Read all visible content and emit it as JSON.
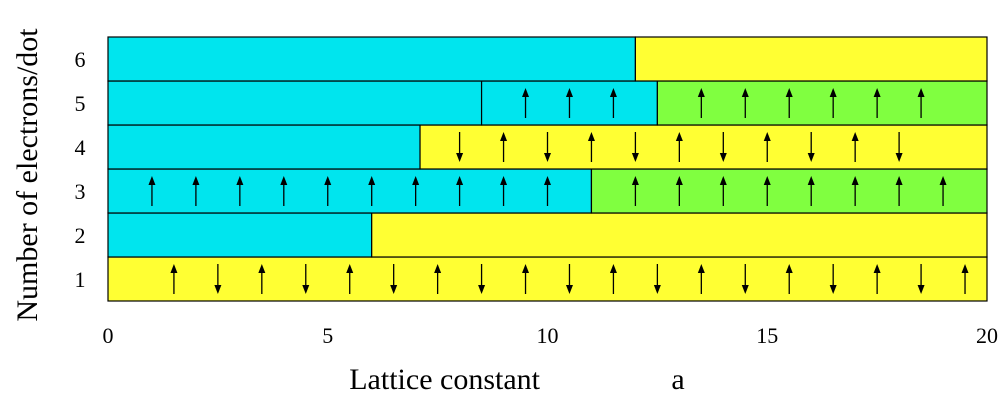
{
  "chart_data": {
    "type": "bar",
    "orientation": "horizontal-segmented",
    "xlabel": "Lattice constant",
    "xlabel_symbol": "a",
    "ylabel": "Number of electrons/dot",
    "xlim": [
      0,
      20
    ],
    "x_ticks": [
      "0",
      "5",
      "10",
      "15",
      "20"
    ],
    "x_tick_values": [
      0,
      5,
      10,
      15,
      20
    ],
    "y_ticks": [
      "1",
      "2",
      "3",
      "4",
      "5",
      "6"
    ],
    "grid": false,
    "colors": {
      "cyan": "#00e5ee",
      "yellow": "#ffff33",
      "green": "#80ff40",
      "edge": "#000000",
      "arrow": "#000000"
    },
    "rows": [
      {
        "n": 1,
        "segments": [
          {
            "from": 0,
            "to": 20,
            "color": "yellow"
          }
        ],
        "arrows": {
          "start": 1.5,
          "step": 1,
          "count": 19,
          "pattern": "alternate-up-down"
        }
      },
      {
        "n": 2,
        "segments": [
          {
            "from": 0,
            "to": 6,
            "color": "cyan"
          },
          {
            "from": 6,
            "to": 20,
            "color": "yellow"
          }
        ],
        "arrows": null
      },
      {
        "n": 3,
        "segments": [
          {
            "from": 0,
            "to": 11,
            "color": "cyan"
          },
          {
            "from": 11,
            "to": 20,
            "color": "green"
          }
        ],
        "arrows": {
          "start": 1,
          "step": 1,
          "count": 19,
          "pattern": "all-up",
          "skip": [
            11
          ]
        }
      },
      {
        "n": 4,
        "segments": [
          {
            "from": 0,
            "to": 7.1,
            "color": "cyan"
          },
          {
            "from": 7.1,
            "to": 20,
            "color": "yellow"
          }
        ],
        "arrows": {
          "start": 8,
          "step": 1,
          "count": 11,
          "pattern": "alternate-down-up"
        }
      },
      {
        "n": 5,
        "segments": [
          {
            "from": 0,
            "to": 8.5,
            "color": "cyan"
          },
          {
            "from": 8.5,
            "to": 12.5,
            "color": "cyan"
          },
          {
            "from": 12.5,
            "to": 20,
            "color": "green"
          }
        ],
        "arrows": {
          "start": 9.5,
          "step": 1,
          "count": 10,
          "pattern": "all-up",
          "skip": [
            12.5
          ]
        }
      },
      {
        "n": 6,
        "segments": [
          {
            "from": 0,
            "to": 12,
            "color": "cyan"
          },
          {
            "from": 12,
            "to": 20,
            "color": "yellow"
          }
        ],
        "arrows": null
      }
    ]
  }
}
